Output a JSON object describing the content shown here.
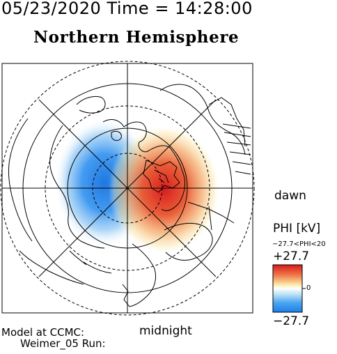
{
  "header": {
    "time_title": "05/23/2020 Time = 14:28:00",
    "hemisphere_title": "Northern Hemisphere"
  },
  "orientation": {
    "dawn_label": "dawn",
    "midnight_label": "midnight"
  },
  "footer": {
    "model_line1": "Model at CCMC:",
    "model_line2": "Weimer_05 Run:"
  },
  "colorbar": {
    "title": "PHI [kV]",
    "range_text": "−27.7<PHI<20",
    "max_label": "+27.7",
    "min_label": "−27.7",
    "zero_label": "0",
    "colors": [
      "#d7191c",
      "#fdae61",
      "#ffffbf",
      "#ffffff",
      "#abd9e9",
      "#2c7bb6"
    ]
  },
  "chart_data": {
    "type": "heatmap",
    "title": "Northern Hemisphere",
    "projection": "polar",
    "variable": "PHI [kV]",
    "min": -27.7,
    "max": 20,
    "scale_min": -27.7,
    "scale_max": 27.7,
    "cells": [
      {
        "name": "negative potential cell",
        "sign": "negative",
        "peak_kv": -27.7,
        "local_time_sector": "pre-noon/dusk side (left)"
      },
      {
        "name": "positive potential cell",
        "sign": "positive",
        "peak_kv": 20,
        "local_time_sector": "dawn side (right)"
      }
    ],
    "grid": true,
    "legend_position": "right"
  }
}
